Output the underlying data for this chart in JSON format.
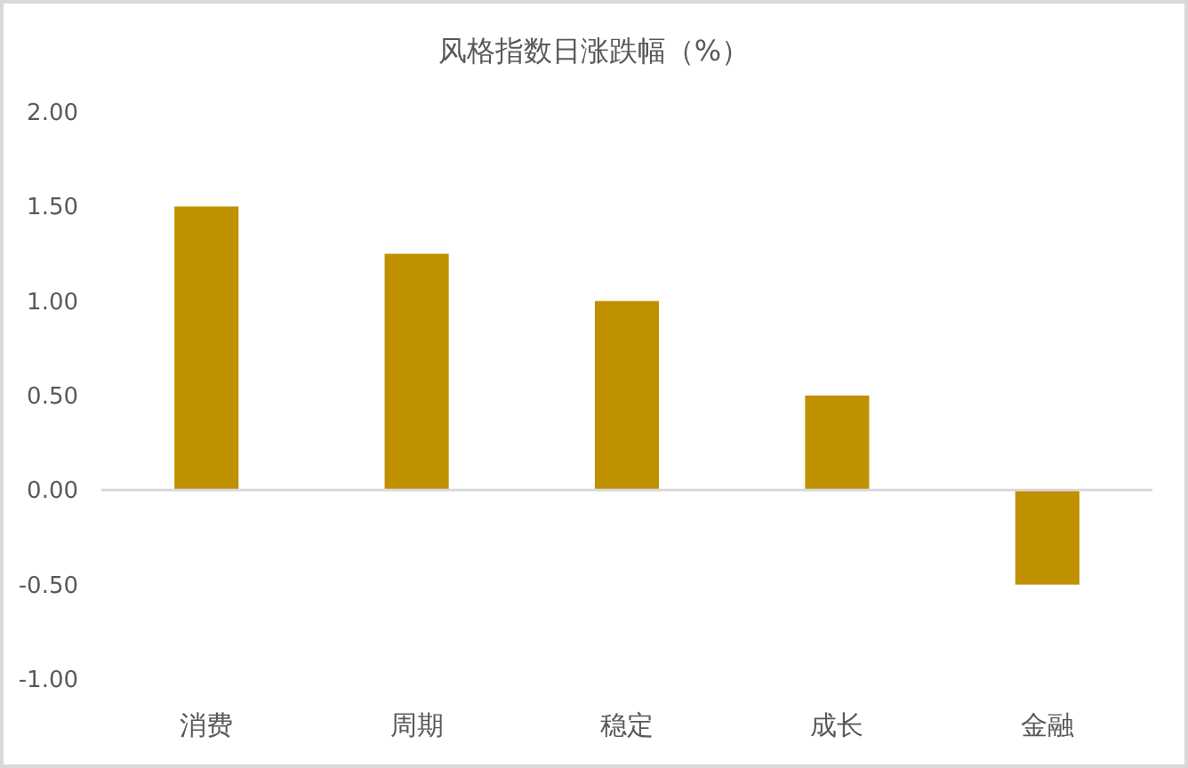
{
  "chart_data": {
    "type": "bar",
    "title": "风格指数日涨跌幅（%）",
    "categories": [
      "消费",
      "周期",
      "稳定",
      "成长",
      "金融"
    ],
    "values": [
      1.5,
      1.25,
      1.0,
      0.5,
      -0.5
    ],
    "color": "#bf9000",
    "ylim": [
      -1,
      2
    ],
    "yticks": [
      {
        "value": -1,
        "label": "-1.00"
      },
      {
        "value": -0.5,
        "label": "-0.50"
      },
      {
        "value": 0,
        "label": "0.00"
      },
      {
        "value": 0.5,
        "label": "0.50"
      },
      {
        "value": 1,
        "label": "1.00"
      },
      {
        "value": 1.5,
        "label": "1.50"
      },
      {
        "value": 2,
        "label": "2.00"
      }
    ]
  }
}
